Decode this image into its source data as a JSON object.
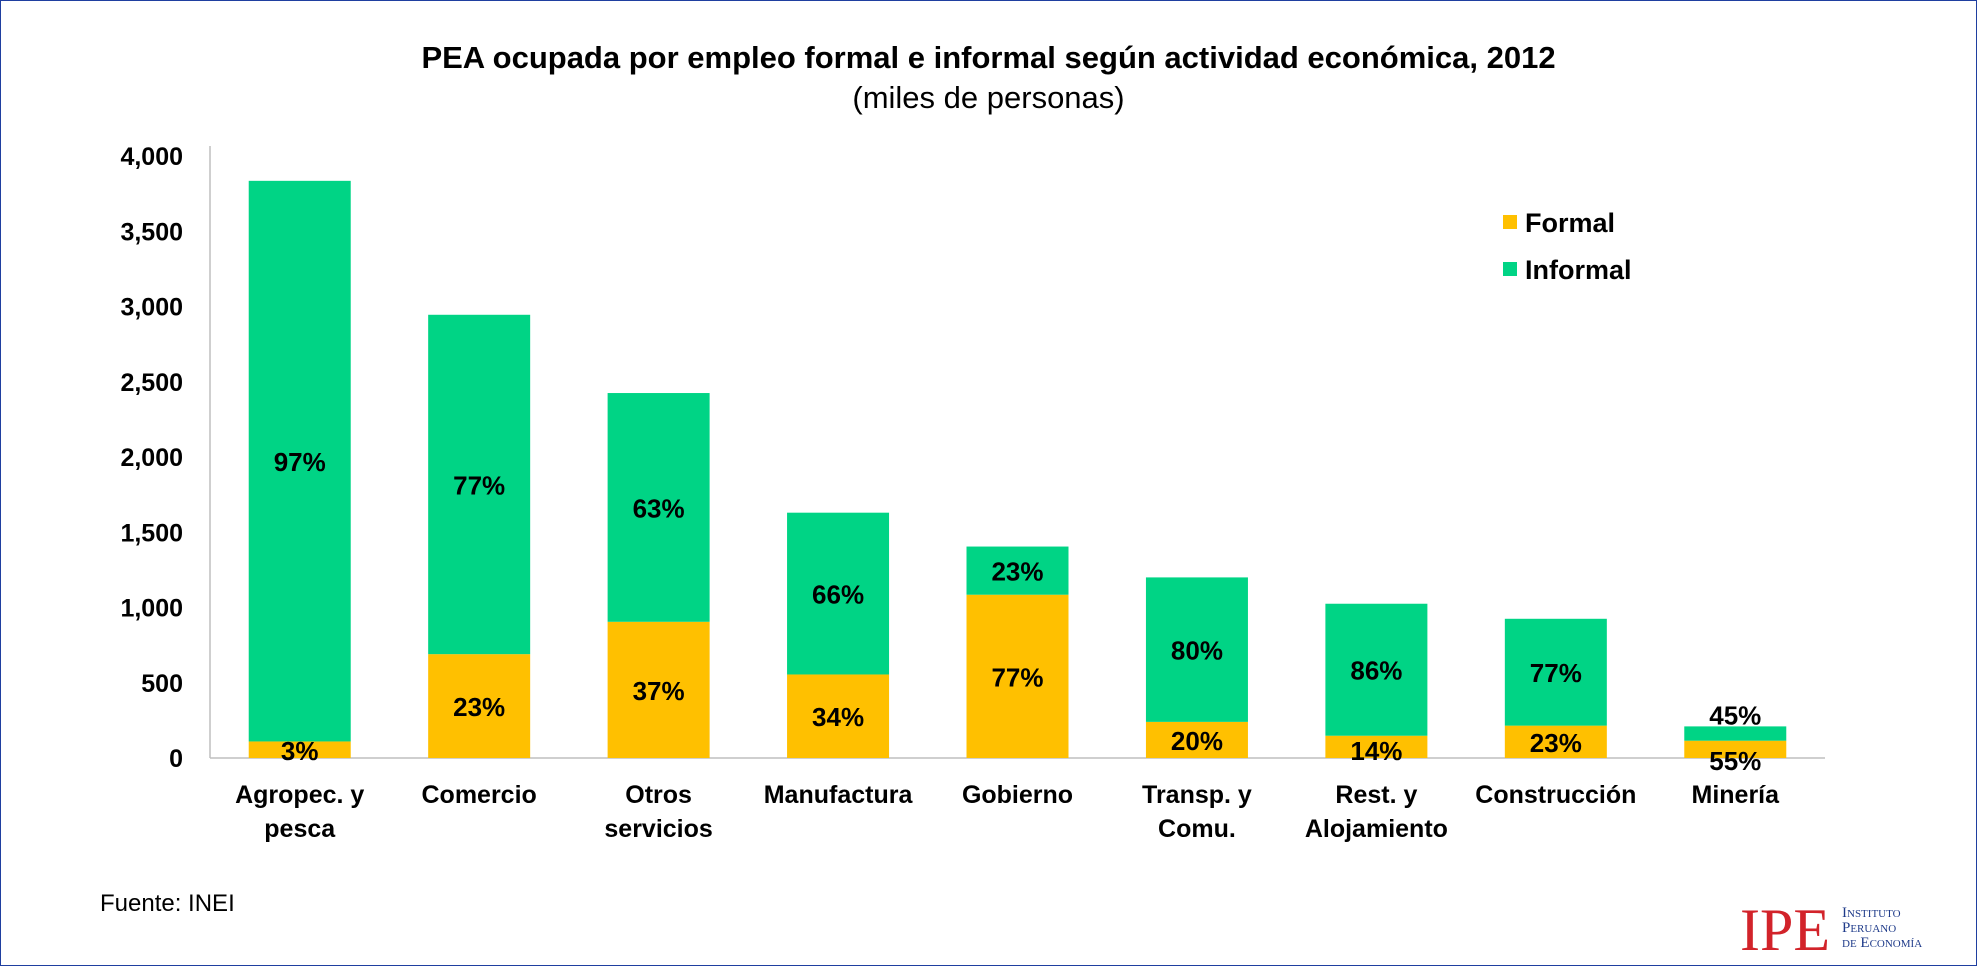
{
  "chart_data": {
    "type": "bar",
    "stacked": true,
    "title": "PEA ocupada por empleo formal e informal según actividad económica, 2012",
    "subtitle": "(miles de personas)",
    "categories": [
      [
        "Agropec. y",
        "pesca"
      ],
      [
        "Comercio"
      ],
      [
        "Otros",
        "servicios"
      ],
      [
        "Manufactura"
      ],
      [
        "Gobierno"
      ],
      [
        "Transp. y",
        "Comu."
      ],
      [
        "Rest. y",
        "Alojamiento"
      ],
      [
        "Construcción"
      ],
      [
        "Minería"
      ]
    ],
    "series": [
      {
        "name": "Formal",
        "color": "#ffc000",
        "values": [
          110,
          690,
          905,
          555,
          1085,
          240,
          148,
          215,
          115
        ],
        "labels": [
          "3%",
          "23%",
          "37%",
          "34%",
          "77%",
          "20%",
          "14%",
          "23%",
          "55%"
        ]
      },
      {
        "name": "Informal",
        "color": "#00d485",
        "values": [
          3725,
          2255,
          1520,
          1075,
          320,
          960,
          877,
          710,
          95
        ],
        "labels": [
          "97%",
          "77%",
          "63%",
          "66%",
          "23%",
          "80%",
          "86%",
          "77%",
          "45%"
        ]
      }
    ],
    "ylim": [
      0,
      4000
    ],
    "yticks": [
      "0",
      "500",
      "1,000",
      "1,500",
      "2,000",
      "2,500",
      "3,000",
      "3,500",
      "4,000"
    ],
    "ytick_values": [
      0,
      500,
      1000,
      1500,
      2000,
      2500,
      3000,
      3500,
      4000
    ],
    "grid": false,
    "legend_position": "top-right"
  },
  "footer": {
    "source": "Fuente: INEI"
  },
  "logo": {
    "mark": "IPE",
    "lines": [
      "Instituto",
      "Peruano",
      "de Economía"
    ]
  }
}
